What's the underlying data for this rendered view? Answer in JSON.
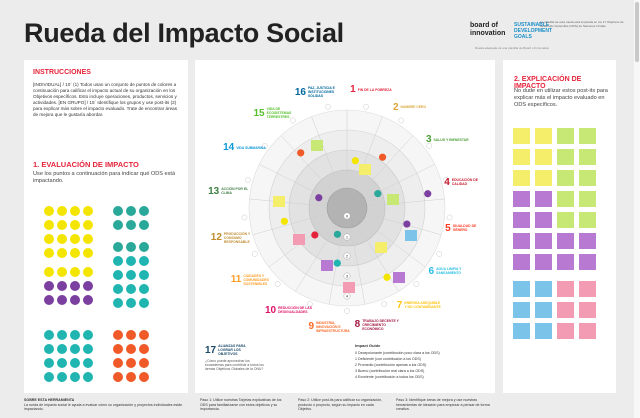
{
  "header": {
    "title": "Rueda del Impacto Social",
    "brand_bi": "board of innovation",
    "brand_sdg": "SUSTAINABLE DEVELOPMENT GOALS",
    "brand_note": "La plantilla de esta rueda está inspirada en los 17 Objetivos de Desarrollo Sostenible (ODS) de Naciones Unidas.",
    "subnote": "Rueda adaptada de una plantilla de Board of Innovation"
  },
  "left": {
    "instr_title": "INSTRUCCIONES",
    "instr_text": "[INDIVIDUAL] / 10´ (1) Todos usan un conjunto de puntos de colores a continuación para calificar el impacto actual de su organización en los Objetivos específicos. Esto incluye operaciones, productos, servicios y actividades. [EN GRUPO] / 15´ Identifique los grupos y use post-its (2) para explicar más sobre el impacto evaluado. Trate de encontrar áreas de mejora que le gustaría abordar.",
    "eval_title": "1. EVALUACIÓN DE IMPACTO",
    "eval_text": "Use los puntos a continuación para indicar qué ODS está impactando."
  },
  "right": {
    "expl_title": "2. EXPLICACIÓN DE IMPACTO",
    "expl_text": "No dude en utilizar estos post-its para explicar más el impacto evaluado en ODS específicos."
  },
  "wheel": {
    "sdgs": [
      {
        "n": "1",
        "label": "FIN DE LA POBREZA",
        "color": "#e5243b"
      },
      {
        "n": "2",
        "label": "HAMBRE CERO",
        "color": "#dda63a"
      },
      {
        "n": "3",
        "label": "SALUD Y BIENESTAR",
        "color": "#4c9f38"
      },
      {
        "n": "4",
        "label": "EDUCACIÓN DE CALIDAD",
        "color": "#c5192d"
      },
      {
        "n": "5",
        "label": "IGUALDAD DE GÉNERO",
        "color": "#ff3a21"
      },
      {
        "n": "6",
        "label": "AGUA LIMPIA Y SANEAMIENTO",
        "color": "#26bde2"
      },
      {
        "n": "7",
        "label": "ENERGÍA ASEQUIBLE Y NO CONTAMINANTE",
        "color": "#fcc30b"
      },
      {
        "n": "8",
        "label": "TRABAJO DECENTE Y CRECIMIENTO ECONÓMICO",
        "color": "#a21942"
      },
      {
        "n": "9",
        "label": "INDUSTRIA, INNOVACIÓN E INFRAESTRUCTURA",
        "color": "#fd6925"
      },
      {
        "n": "10",
        "label": "REDUCCIÓN DE LAS DESIGUALDADES",
        "color": "#dd1367"
      },
      {
        "n": "11",
        "label": "CIUDADES Y COMUNIDADES SOSTENIBLES",
        "color": "#fd9d24"
      },
      {
        "n": "12",
        "label": "PRODUCCIÓN Y CONSUMO RESPONSABLE",
        "color": "#bf8b2e"
      },
      {
        "n": "13",
        "label": "ACCIÓN POR EL CLIMA",
        "color": "#3f7e44"
      },
      {
        "n": "14",
        "label": "VIDA SUBMARINA",
        "color": "#0a97d9"
      },
      {
        "n": "15",
        "label": "VIDA DE ECOSISTEMAS TERRESTRES",
        "color": "#56c02b"
      },
      {
        "n": "16",
        "label": "PAZ, JUSTICIA E INSTITUCIONES SÓLIDAS",
        "color": "#00689d"
      },
      {
        "n": "17",
        "label": "ALIANZAS PARA LOGRAR LOS OBJETIVOS",
        "color": "#19486a"
      }
    ],
    "sdg17_note": "¿Cómo puede aprovechar los ecosistemas para contribuir a todos los demás Objetivos Globales de la ONU?",
    "rings": [
      "0",
      "1",
      "2",
      "3",
      "4"
    ],
    "guide_title": "Impact Guide",
    "guide": [
      "0 Decepcionante (contribución poco clara a los ODS)",
      "1 Deficiente (con contribución a los ODS)",
      "2 Promedio (contribución apenas a los ODS)",
      "3 Bueno (contribución real clara a los ODS)",
      "4 Excelente (contribución a todos los ODS)"
    ]
  },
  "footer": {
    "about_title": "SOBRE ESTA HERRAMIENTA",
    "about": "La rueda de impacto social le ayuda a evaluar cómo su organización y proyectos individuales están impactando.",
    "step1": "Paso 1: Utilice nuestras Tarjetas explicativas de los ODS para familiarizarse con estos objetivos y su importancia.",
    "step2": "Paso 2: Utilice post-its para calificar su organización, producto o proyecto, según su impacto en cada Objetivo.",
    "step3": "Paso 3: Identifique áreas de mejora y use nuestras herramientas de ideación para empezar a pensar de forma creativa."
  },
  "colors": {
    "dots": [
      "#f4e500",
      "#7b3fa0",
      "#2aa89a",
      "#20b5b0",
      "#f05a28"
    ],
    "notes": [
      "#f4ee6b",
      "#c7e874",
      "#b779d1",
      "#7cc3ea",
      "#f49bb4"
    ]
  }
}
